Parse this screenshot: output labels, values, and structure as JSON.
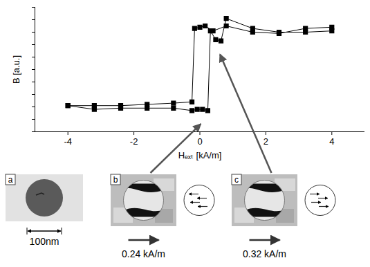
{
  "chart_data": {
    "type": "line",
    "x_label": "Hₑₓₜ [kA/m]",
    "y_label": "B [a.u.]",
    "xlim": [
      -5,
      5
    ],
    "xticks": [
      -4,
      -2,
      0,
      2,
      4
    ],
    "ylim": [
      0,
      10
    ],
    "yticks": [
      0,
      1,
      2,
      3,
      4,
      5,
      6,
      7,
      8,
      9,
      10
    ],
    "tick_labels": "x",
    "grid": false,
    "series": [
      {
        "color": "#000000",
        "marker": "square",
        "line_style": "solid",
        "x": [
          4,
          3.2,
          2.4,
          1.6,
          0.8,
          0.4,
          0.16,
          0,
          -0.16,
          -0.24,
          -0.8,
          -1.6,
          -2.4,
          -3.2,
          -4
        ],
        "values": [
          8.4,
          8.3,
          7.9,
          8.0,
          8.5,
          8.1,
          8.5,
          8.4,
          8.3,
          2.4,
          2.3,
          2.2,
          2.1,
          2.1,
          2.1
        ]
      },
      {
        "color": "#000000",
        "marker": "square",
        "line_style": "solid",
        "x": [
          -4,
          -3.2,
          -2.4,
          -1.6,
          -0.8,
          -0.24,
          -0.08,
          0.08,
          0.24,
          0.32,
          0.48,
          0.64,
          0.8,
          1.6,
          2.4,
          3.2,
          4
        ],
        "values": [
          2.1,
          1.8,
          1.9,
          1.9,
          1.9,
          1.7,
          1.8,
          1.8,
          1.7,
          8.1,
          7.4,
          7.3,
          9.1,
          8.3,
          8.0,
          8.0,
          8.1
        ]
      }
    ]
  },
  "panels": [
    {
      "label": "a",
      "scale_bar": "100nm"
    },
    {
      "label": "b",
      "field": "0.24 kA/m",
      "arrow_to": {
        "x": 0.04,
        "y": 0.6
      }
    },
    {
      "label": "c",
      "field": "0.32 kA/m",
      "arrow_to": {
        "x": 0.62,
        "y": 6.2
      }
    }
  ]
}
